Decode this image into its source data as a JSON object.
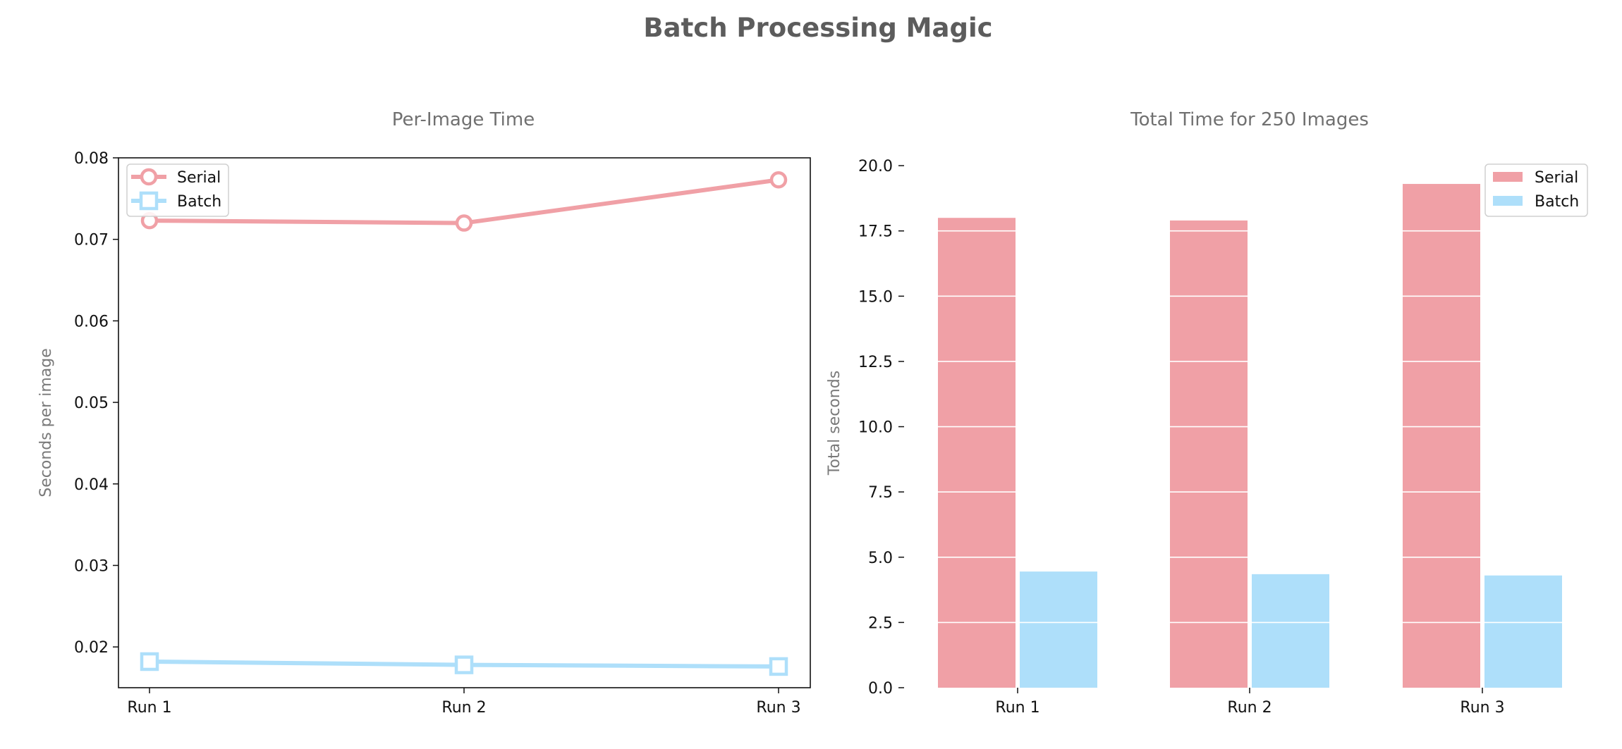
{
  "figure": {
    "title": "Batch Processing Magic"
  },
  "colors": {
    "serial": "#f0a0a6",
    "batch": "#aedffa",
    "title_text": "#5c5c5c",
    "axis_text": "#707070"
  },
  "chart_data": [
    {
      "type": "line",
      "title": "Per-Image Time",
      "xlabel": "",
      "ylabel": "Seconds per image",
      "categories": [
        "Run 1",
        "Run 2",
        "Run 3"
      ],
      "series": [
        {
          "name": "Serial",
          "values": [
            0.0723,
            0.072,
            0.0773
          ],
          "marker": "circle",
          "color": "#f0a0a6"
        },
        {
          "name": "Batch",
          "values": [
            0.0182,
            0.0178,
            0.0176
          ],
          "marker": "square",
          "color": "#aedffa"
        }
      ],
      "ylim": [
        0.015,
        0.08
      ],
      "yticks": [
        "0.02",
        "0.03",
        "0.04",
        "0.05",
        "0.06",
        "0.07",
        "0.08"
      ],
      "grid": false,
      "legend": "top-left"
    },
    {
      "type": "bar",
      "title": "Total Time for 250 Images",
      "xlabel": "",
      "ylabel": "Total seconds",
      "categories": [
        "Run 1",
        "Run 2",
        "Run 3"
      ],
      "series": [
        {
          "name": "Serial",
          "values": [
            18.0,
            17.9,
            19.3
          ],
          "color": "#f0a0a6"
        },
        {
          "name": "Batch",
          "values": [
            4.45,
            4.35,
            4.3
          ],
          "color": "#aedffa"
        }
      ],
      "ylim": [
        0,
        20.3
      ],
      "yticks": [
        "0.0",
        "2.5",
        "5.0",
        "7.5",
        "10.0",
        "12.5",
        "15.0",
        "17.5",
        "20.0"
      ],
      "grid": "horizontal, white, drawn over bars",
      "legend": "top-right"
    }
  ]
}
